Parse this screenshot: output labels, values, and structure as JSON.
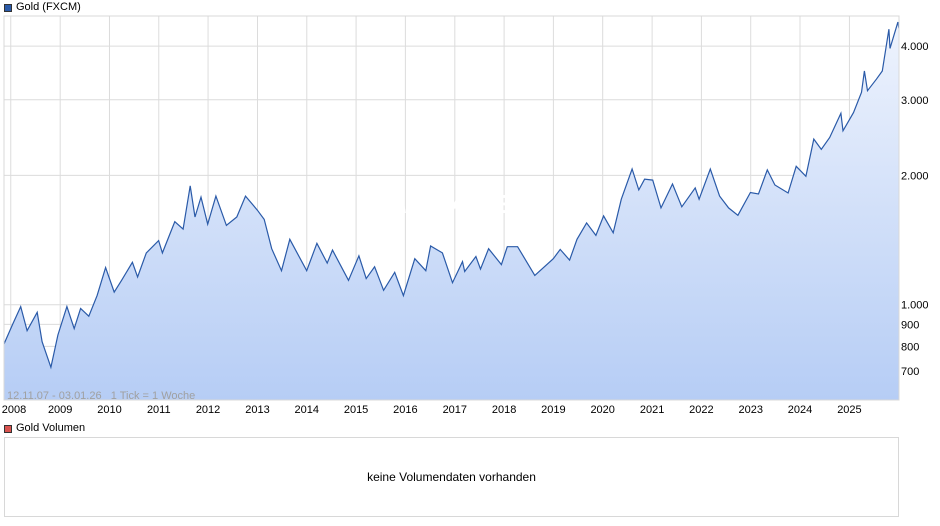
{
  "legend": {
    "price_label": "Gold (FXCM)",
    "price_color": "#2a5aa8",
    "volume_label": "Gold Volumen",
    "volume_color": "#d9534f"
  },
  "range_info": "12.11.07 - 03.01.26   1 Tick = 1 Woche",
  "watermark": "ARIVA.DE",
  "volume_panel": {
    "message": "keine Volumendaten vorhanden"
  },
  "colors": {
    "line": "#2a5aa8",
    "area_top": "#eef3fd",
    "area_bottom": "#b6cdf5",
    "grid": "#dcdcdc"
  },
  "chart_data": {
    "type": "area",
    "title": "Gold (FXCM)",
    "y_scale": "log",
    "ylim": [
      600,
      4700
    ],
    "xlim": [
      "2007-11-12",
      "2026-01-03"
    ],
    "grid": true,
    "legend_position": "top-left",
    "y_ticks": [
      {
        "value": 700,
        "label": "700"
      },
      {
        "value": 800,
        "label": "800"
      },
      {
        "value": 900,
        "label": "900"
      },
      {
        "value": 1000,
        "label": "1.000"
      },
      {
        "value": 2000,
        "label": "2.000"
      },
      {
        "value": 3000,
        "label": "3.000"
      },
      {
        "value": 4000,
        "label": "4.000"
      }
    ],
    "x_ticks": [
      "2008",
      "2009",
      "2010",
      "2011",
      "2012",
      "2013",
      "2014",
      "2015",
      "2016",
      "2017",
      "2018",
      "2019",
      "2020",
      "2021",
      "2022",
      "2023",
      "2024",
      "2025"
    ],
    "series": [
      {
        "name": "Gold (FXCM)",
        "points": [
          [
            "2007-11-12",
            810
          ],
          [
            "2008-01-15",
            900
          ],
          [
            "2008-03-15",
            990
          ],
          [
            "2008-05-01",
            870
          ],
          [
            "2008-07-15",
            960
          ],
          [
            "2008-08-20",
            820
          ],
          [
            "2008-10-24",
            715
          ],
          [
            "2008-12-15",
            850
          ],
          [
            "2009-02-20",
            990
          ],
          [
            "2009-04-15",
            880
          ],
          [
            "2009-06-01",
            980
          ],
          [
            "2009-08-01",
            940
          ],
          [
            "2009-10-01",
            1050
          ],
          [
            "2009-12-03",
            1220
          ],
          [
            "2010-02-05",
            1070
          ],
          [
            "2010-04-01",
            1140
          ],
          [
            "2010-06-20",
            1255
          ],
          [
            "2010-07-28",
            1160
          ],
          [
            "2010-10-01",
            1320
          ],
          [
            "2010-12-31",
            1410
          ],
          [
            "2011-01-28",
            1320
          ],
          [
            "2011-04-30",
            1560
          ],
          [
            "2011-06-30",
            1500
          ],
          [
            "2011-08-22",
            1890
          ],
          [
            "2011-09-26",
            1600
          ],
          [
            "2011-11-10",
            1780
          ],
          [
            "2011-12-29",
            1540
          ],
          [
            "2012-02-28",
            1790
          ],
          [
            "2012-05-16",
            1530
          ],
          [
            "2012-08-01",
            1600
          ],
          [
            "2012-10-04",
            1790
          ],
          [
            "2012-12-31",
            1660
          ],
          [
            "2013-02-20",
            1580
          ],
          [
            "2013-04-16",
            1350
          ],
          [
            "2013-06-28",
            1200
          ],
          [
            "2013-08-28",
            1420
          ],
          [
            "2013-12-31",
            1200
          ],
          [
            "2014-03-17",
            1390
          ],
          [
            "2014-06-01",
            1250
          ],
          [
            "2014-07-10",
            1340
          ],
          [
            "2014-11-06",
            1140
          ],
          [
            "2015-01-22",
            1300
          ],
          [
            "2015-03-17",
            1150
          ],
          [
            "2015-05-18",
            1225
          ],
          [
            "2015-07-24",
            1080
          ],
          [
            "2015-10-14",
            1190
          ],
          [
            "2015-12-17",
            1050
          ],
          [
            "2016-03-11",
            1280
          ],
          [
            "2016-05-31",
            1200
          ],
          [
            "2016-07-06",
            1370
          ],
          [
            "2016-10-01",
            1320
          ],
          [
            "2016-12-15",
            1125
          ],
          [
            "2017-02-27",
            1260
          ],
          [
            "2017-03-15",
            1195
          ],
          [
            "2017-06-06",
            1295
          ],
          [
            "2017-07-10",
            1210
          ],
          [
            "2017-09-08",
            1350
          ],
          [
            "2017-12-12",
            1240
          ],
          [
            "2018-01-25",
            1365
          ],
          [
            "2018-04-11",
            1365
          ],
          [
            "2018-08-16",
            1170
          ],
          [
            "2018-12-31",
            1280
          ],
          [
            "2019-02-20",
            1345
          ],
          [
            "2019-05-01",
            1270
          ],
          [
            "2019-06-25",
            1420
          ],
          [
            "2019-09-04",
            1550
          ],
          [
            "2019-11-12",
            1450
          ],
          [
            "2020-01-08",
            1610
          ],
          [
            "2020-03-19",
            1470
          ],
          [
            "2020-05-18",
            1760
          ],
          [
            "2020-08-06",
            2070
          ],
          [
            "2020-09-24",
            1850
          ],
          [
            "2020-11-06",
            1960
          ],
          [
            "2021-01-05",
            1950
          ],
          [
            "2021-03-08",
            1680
          ],
          [
            "2021-06-01",
            1910
          ],
          [
            "2021-08-09",
            1690
          ],
          [
            "2021-11-16",
            1870
          ],
          [
            "2021-12-15",
            1760
          ],
          [
            "2022-03-08",
            2070
          ],
          [
            "2022-05-16",
            1790
          ],
          [
            "2022-07-21",
            1680
          ],
          [
            "2022-09-28",
            1615
          ],
          [
            "2022-12-30",
            1825
          ],
          [
            "2023-02-28",
            1810
          ],
          [
            "2023-05-04",
            2060
          ],
          [
            "2023-06-29",
            1900
          ],
          [
            "2023-10-05",
            1820
          ],
          [
            "2023-12-04",
            2100
          ],
          [
            "2024-02-14",
            1990
          ],
          [
            "2024-04-12",
            2430
          ],
          [
            "2024-06-07",
            2300
          ],
          [
            "2024-08-08",
            2450
          ],
          [
            "2024-10-30",
            2790
          ],
          [
            "2024-11-14",
            2540
          ],
          [
            "2025-01-31",
            2800
          ],
          [
            "2025-03-31",
            3120
          ],
          [
            "2025-04-22",
            3500
          ],
          [
            "2025-05-15",
            3150
          ],
          [
            "2025-07-20",
            3350
          ],
          [
            "2025-09-01",
            3500
          ],
          [
            "2025-10-20",
            4380
          ],
          [
            "2025-10-28",
            3950
          ],
          [
            "2025-12-26",
            4550
          ],
          [
            "2026-01-02",
            4400
          ]
        ]
      }
    ]
  }
}
